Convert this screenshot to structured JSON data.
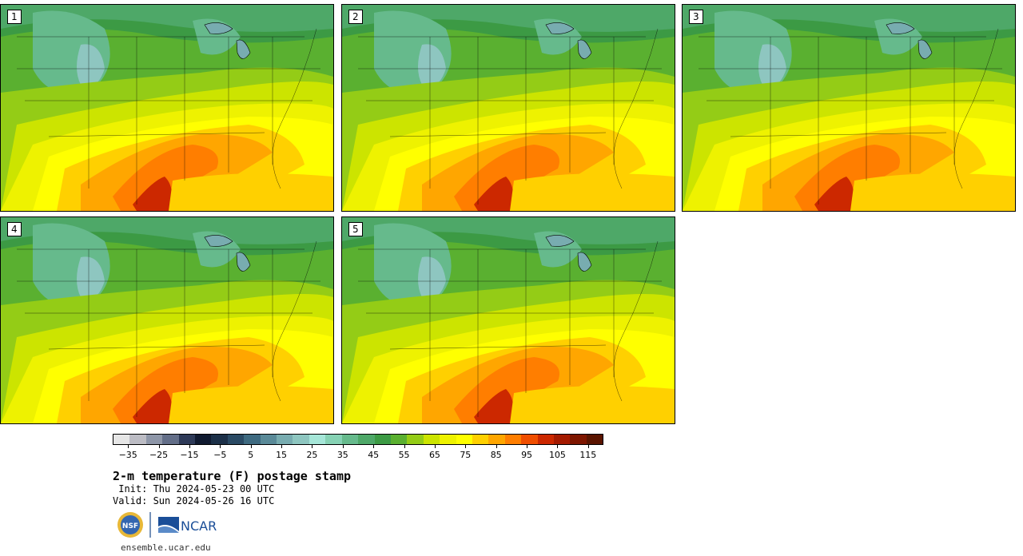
{
  "panels": [
    {
      "label": "1"
    },
    {
      "label": "2"
    },
    {
      "label": "3"
    },
    {
      "label": "4"
    },
    {
      "label": "5"
    }
  ],
  "colorbar": {
    "ticks": [
      "−35",
      "−25",
      "−15",
      "−5",
      "5",
      "15",
      "25",
      "35",
      "45",
      "55",
      "65",
      "75",
      "85",
      "95",
      "105",
      "115"
    ],
    "min": -40,
    "max": 120,
    "colors": [
      "#e6e6e6",
      "#bcbcc4",
      "#8e96a8",
      "#636e88",
      "#2e3a58",
      "#101a30",
      "#1c3048",
      "#2a4a64",
      "#3e6a80",
      "#5a8a98",
      "#78acb0",
      "#8ec6c0",
      "#a6e6d8",
      "#86d2b4",
      "#66ba8c",
      "#4ea868",
      "#3c9a44",
      "#5ab030",
      "#94cc16",
      "#cce400",
      "#eef200",
      "#ffff00",
      "#ffd000",
      "#ffa600",
      "#ff7e00",
      "#f04e00",
      "#cc2800",
      "#a41a00",
      "#7e1600",
      "#5a1400"
    ]
  },
  "title": "2-m temperature (F) postage stamp",
  "init": " Init: Thu 2024-05-23 00 UTC",
  "valid": "Valid: Sun 2024-05-26 16 UTC",
  "logos": {
    "nsf": "NSF",
    "ncar": "NCAR"
  },
  "site": "ensemble.ucar.edu"
}
